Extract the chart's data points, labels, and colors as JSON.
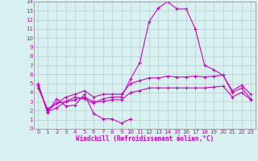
{
  "xlabel": "Windchill (Refroidissement éolien,°C)",
  "background_color": "#d8f0f0",
  "grid_color": "#b8cece",
  "line_color": "#cc00cc",
  "x_hours": [
    0,
    1,
    2,
    3,
    4,
    5,
    6,
    7,
    8,
    9,
    10,
    11,
    12,
    13,
    14,
    15,
    16,
    17,
    18,
    19,
    20,
    21,
    22,
    23
  ],
  "line1_x": [
    0,
    1,
    2,
    3,
    4,
    5,
    6,
    7,
    8,
    9,
    10
  ],
  "line1_y": [
    5.0,
    1.8,
    3.3,
    2.5,
    2.6,
    3.8,
    1.7,
    1.1,
    1.1,
    0.6,
    1.1
  ],
  "line2": [
    4.8,
    1.9,
    2.3,
    3.0,
    3.5,
    3.3,
    2.8,
    3.3,
    3.5,
    3.5,
    5.5,
    7.3,
    11.8,
    13.3,
    14.0,
    13.2,
    13.2,
    11.0,
    7.0,
    6.5,
    5.9,
    4.0,
    4.5,
    3.3
  ],
  "line3": [
    4.8,
    2.0,
    2.8,
    3.5,
    3.8,
    4.2,
    3.5,
    3.8,
    3.8,
    3.8,
    5.0,
    5.3,
    5.6,
    5.6,
    5.8,
    5.7,
    5.7,
    5.8,
    5.7,
    5.8,
    5.9,
    4.2,
    4.8,
    3.8
  ],
  "line4": [
    4.5,
    2.2,
    2.8,
    3.0,
    3.2,
    3.5,
    3.0,
    3.0,
    3.2,
    3.2,
    4.0,
    4.2,
    4.5,
    4.5,
    4.5,
    4.5,
    4.5,
    4.5,
    4.5,
    4.6,
    4.7,
    3.5,
    4.0,
    3.2
  ],
  "ylim": [
    0,
    14
  ],
  "xlim": [
    -0.5,
    23.5
  ],
  "yticks": [
    0,
    1,
    2,
    3,
    4,
    5,
    6,
    7,
    8,
    9,
    10,
    11,
    12,
    13,
    14
  ],
  "xticks": [
    0,
    1,
    2,
    3,
    4,
    5,
    6,
    7,
    8,
    9,
    10,
    11,
    12,
    13,
    14,
    15,
    16,
    17,
    18,
    19,
    20,
    21,
    22,
    23
  ],
  "tick_fontsize": 5.0,
  "xlabel_fontsize": 5.5
}
